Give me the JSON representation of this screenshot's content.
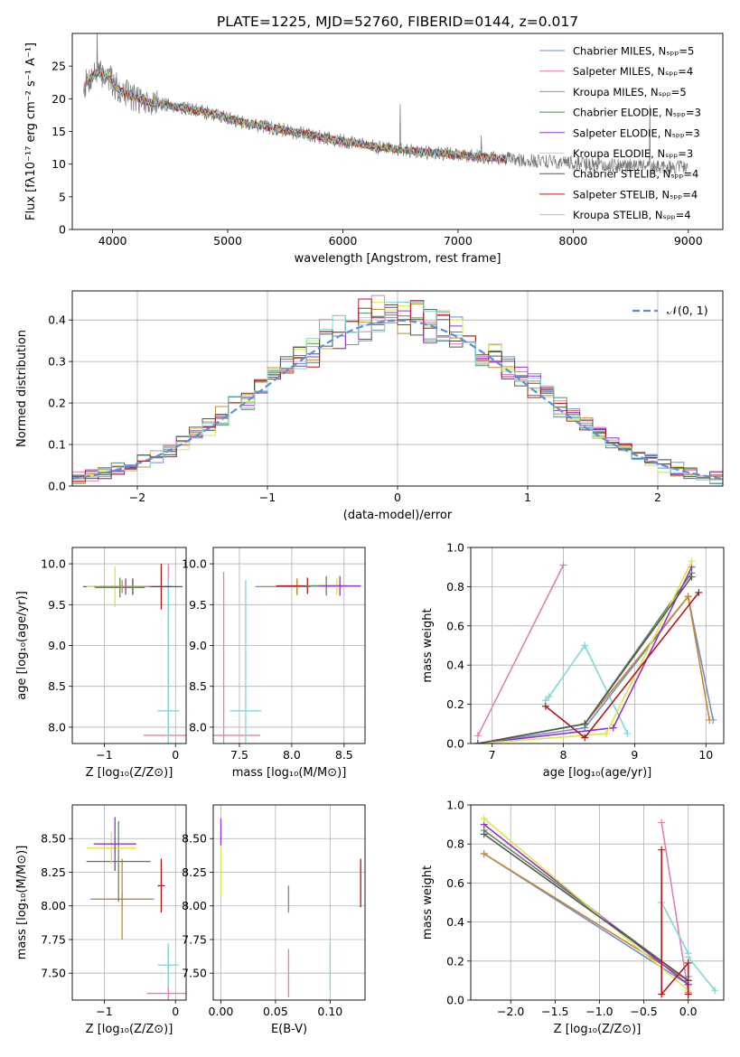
{
  "title": "PLATE=1225, MJD=52760, FIBERID=0144, z=0.017",
  "colors": {
    "Chabrier MILES": "#6b8fd6",
    "Salpeter MILES": "#e07fb5",
    "Kroupa MILES": "#c8872a",
    "Chabrier ELODIE": "#5a8a5a",
    "Salpeter ELODIE": "#9b30c6",
    "Kroupa ELODIE": "#d6e84a",
    "Chabrier STELIB": "#555555",
    "Salpeter STELIB": "#b01818",
    "Kroupa STELIB": "#7fd6d8",
    "normal": "#5b8fd8"
  },
  "chart_data": [
    {
      "type": "line",
      "xlabel": "wavelength [Angstrom, rest frame]",
      "ylabel": "Flux [fλ10⁻¹⁷ erg cm⁻² s⁻¹ A⁻¹]",
      "xlim": [
        3650,
        9300
      ],
      "ylim": [
        0,
        30
      ],
      "xticks": [
        4000,
        5000,
        6000,
        7000,
        8000,
        9000
      ],
      "yticks": [
        0,
        5,
        10,
        15,
        20,
        25
      ],
      "grid": false,
      "legend_position": "upper-right",
      "legend": [
        {
          "name": "Chabrier MILES",
          "label": "Chabrier MILES, Nₛₚₚ=5"
        },
        {
          "name": "Salpeter MILES",
          "label": "Salpeter MILES, Nₛₚₚ=4"
        },
        {
          "name": "Kroupa MILES",
          "label": "Kroupa MILES, Nₛₚₚ=5"
        },
        {
          "name": "Chabrier ELODIE",
          "label": "Chabrier ELODIE, Nₛₚₚ=3"
        },
        {
          "name": "Salpeter ELODIE",
          "label": "Salpeter ELODIE, Nₛₚₚ=3"
        },
        {
          "name": "Kroupa ELODIE",
          "label": "Kroupa ELODIE, Nₛₚₚ=3"
        },
        {
          "name": "Chabrier STELIB",
          "label": "Chabrier STELIB, Nₛₚₚ=4"
        },
        {
          "name": "Salpeter STELIB",
          "label": "Salpeter STELIB, Nₛₚₚ=4"
        },
        {
          "name": "Kroupa STELIB",
          "label": "Kroupa STELIB, Nₛₚₚ=4"
        }
      ],
      "continuum": {
        "x": [
          3750,
          3850,
          3950,
          4050,
          4150,
          4300,
          4500,
          4700,
          4900,
          5100,
          5400,
          5700,
          6000,
          6300,
          6600,
          6900,
          7200,
          7500,
          7800,
          8100,
          8400,
          8700,
          9000
        ],
        "y": [
          22,
          24,
          23.5,
          21.5,
          20.5,
          19.5,
          19,
          18.3,
          17.6,
          16.5,
          15.5,
          14.5,
          13.5,
          12.6,
          12,
          11.6,
          11.1,
          10.7,
          10.4,
          10,
          9.8,
          9.6,
          9.5
        ]
      },
      "data_range": [
        3750,
        9000
      ],
      "model_range": [
        3750,
        7420
      ]
    },
    {
      "type": "step",
      "xlabel": "(data-model)/error",
      "ylabel": "Normed distribution",
      "xlim": [
        -2.5,
        2.5
      ],
      "ylim": [
        0,
        0.47
      ],
      "xticks": [
        -2,
        -1,
        0,
        1,
        2
      ],
      "yticks": [
        0.0,
        0.1,
        0.2,
        0.3,
        0.4
      ],
      "grid": true,
      "legend_position": "upper-right",
      "legend": [
        {
          "name": "normal",
          "label": "𝒩(0, 1)"
        }
      ],
      "bin_width": 0.1
    },
    {
      "type": "errorbar",
      "xlabel": "Z [log₁₀(Z/Z⊙)]",
      "ylabel": "age  [log₁₀(age/yr)]",
      "xlim": [
        -1.45,
        0.15
      ],
      "ylim": [
        7.8,
        10.2
      ],
      "xticks": [
        -1,
        0
      ],
      "yticks": [
        8.0,
        8.5,
        9.0,
        9.5,
        10.0
      ],
      "grid": true,
      "points": [
        {
          "series": "Salpeter MILES",
          "x": -0.1,
          "y": 7.9,
          "xerr": 0.35,
          "yerr": 2.1
        },
        {
          "series": "Kroupa STELIB",
          "x": -0.1,
          "y": 8.2,
          "xerr": 0.15,
          "yerr": 1.6
        },
        {
          "series": "Chabrier STELIB",
          "x": -0.6,
          "y": 9.72,
          "xerr": 0.7,
          "yerr": 0.1
        },
        {
          "series": "Kroupa ELODIE",
          "x": -0.85,
          "y": 9.72,
          "xerr": 0.4,
          "yerr": 0.25
        },
        {
          "series": "Chabrier ELODIE",
          "x": -0.78,
          "y": 9.71,
          "xerr": 0.35,
          "yerr": 0.12
        },
        {
          "series": "Salpeter ELODIE",
          "x": -0.7,
          "y": 9.72,
          "xerr": 0.35,
          "yerr": 0.1
        },
        {
          "series": "Kroupa MILES",
          "x": -0.75,
          "y": 9.72,
          "xerr": 0.4,
          "yerr": 0.08
        },
        {
          "series": "Salpeter STELIB",
          "x": -0.2,
          "y": 9.72,
          "xerr": 0.15,
          "yerr": 0.28
        }
      ]
    },
    {
      "type": "errorbar",
      "xlabel": "mass [log₁₀(M/M⊙)]",
      "ylabel": "",
      "xlim": [
        7.25,
        8.7
      ],
      "ylim": [
        7.8,
        10.2
      ],
      "xticks": [
        7.5,
        8.0,
        8.5
      ],
      "yticks": [
        8.0,
        8.5,
        9.0,
        9.5,
        10.0
      ],
      "grid": true,
      "points": [
        {
          "series": "Salpeter MILES",
          "x": 7.35,
          "y": 7.9,
          "xerr": 0.35,
          "yerr": 2.0
        },
        {
          "series": "Kroupa STELIB",
          "x": 7.56,
          "y": 8.2,
          "xerr": 0.15,
          "yerr": 1.6
        },
        {
          "series": "Chabrier MILES",
          "x": 8.05,
          "y": 9.72,
          "xerr": 0.4,
          "yerr": 0.1
        },
        {
          "series": "Kroupa MILES",
          "x": 8.05,
          "y": 9.72,
          "xerr": 0.35,
          "yerr": 0.1
        },
        {
          "series": "Salpeter STELIB",
          "x": 8.15,
          "y": 9.73,
          "xerr": 0.3,
          "yerr": 0.1
        },
        {
          "series": "Kroupa ELODIE",
          "x": 8.43,
          "y": 9.72,
          "xerr": 0.25,
          "yerr": 0.1
        },
        {
          "series": "Chabrier ELODIE",
          "x": 8.33,
          "y": 9.73,
          "xerr": 0.2,
          "yerr": 0.12
        },
        {
          "series": "Salpeter ELODIE",
          "x": 8.46,
          "y": 9.73,
          "xerr": 0.2,
          "yerr": 0.12
        }
      ]
    },
    {
      "type": "line",
      "xlabel": "age  [log₁₀(age/yr)]",
      "ylabel": "mass weight",
      "xlim": [
        6.7,
        10.25
      ],
      "ylim": [
        0,
        1.0
      ],
      "xticks": [
        7,
        8,
        9,
        10
      ],
      "yticks": [
        0.0,
        0.2,
        0.4,
        0.6,
        0.8,
        1.0
      ],
      "grid": true,
      "series": [
        {
          "name": "Salpeter MILES",
          "x": [
            6.8,
            8.0
          ],
          "y": [
            0.04,
            0.91
          ]
        },
        {
          "name": "Kroupa STELIB",
          "x": [
            7.75,
            7.8,
            8.3,
            8.9
          ],
          "y": [
            0.22,
            0.24,
            0.5,
            0.05
          ]
        },
        {
          "name": "Chabrier MILES",
          "x": [
            6.8,
            8.3,
            9.75,
            10.1
          ],
          "y": [
            0.0,
            0.08,
            0.75,
            0.12
          ]
        },
        {
          "name": "Kroupa MILES",
          "x": [
            6.8,
            8.3,
            9.75,
            10.05
          ],
          "y": [
            0.0,
            0.1,
            0.75,
            0.12
          ]
        },
        {
          "name": "Chabrier ELODIE",
          "x": [
            6.8,
            8.3,
            9.8
          ],
          "y": [
            0.0,
            0.1,
            0.87
          ]
        },
        {
          "name": "Salpeter ELODIE",
          "x": [
            6.8,
            8.7,
            9.8
          ],
          "y": [
            0.0,
            0.08,
            0.9
          ]
        },
        {
          "name": "Kroupa ELODIE",
          "x": [
            6.8,
            8.6,
            9.8
          ],
          "y": [
            0.0,
            0.05,
            0.93
          ]
        },
        {
          "name": "Salpeter STELIB",
          "x": [
            7.75,
            8.3,
            9.9
          ],
          "y": [
            0.19,
            0.03,
            0.77
          ]
        },
        {
          "name": "Chabrier STELIB",
          "x": [
            6.8,
            8.3,
            9.8
          ],
          "y": [
            0.0,
            0.1,
            0.85
          ]
        }
      ]
    },
    {
      "type": "errorbar",
      "xlabel": "Z [log₁₀(Z/Z⊙)]",
      "ylabel": "mass [log₁₀(M/M⊙)]",
      "xlim": [
        -1.45,
        0.15
      ],
      "ylim": [
        7.3,
        8.75
      ],
      "xticks": [
        -1,
        0
      ],
      "yticks": [
        7.5,
        7.75,
        8.0,
        8.25,
        8.5
      ],
      "grid": true,
      "points": [
        {
          "series": "Salpeter MILES",
          "x": -0.1,
          "y": 7.35,
          "xerr": 0.3,
          "yerr": 0.33
        },
        {
          "series": "Kroupa STELIB",
          "x": -0.1,
          "y": 7.56,
          "xerr": 0.15,
          "yerr": 0.16
        },
        {
          "series": "Chabrier MILES",
          "x": -0.75,
          "y": 8.05,
          "xerr": 0.45,
          "yerr": 0.05
        },
        {
          "series": "Kroupa MILES",
          "x": -0.75,
          "y": 8.05,
          "xerr": 0.4,
          "yerr": 0.3
        },
        {
          "series": "Salpeter STELIB",
          "x": -0.2,
          "y": 8.15,
          "xerr": 0.05,
          "yerr": 0.2
        },
        {
          "series": "Chabrier ELODIE",
          "x": -0.8,
          "y": 8.33,
          "xerr": 0.45,
          "yerr": 0.3
        },
        {
          "series": "Kroupa ELODIE",
          "x": -0.9,
          "y": 8.43,
          "xerr": 0.35,
          "yerr": 0.12
        },
        {
          "series": "Salpeter ELODIE",
          "x": -0.85,
          "y": 8.46,
          "xerr": 0.3,
          "yerr": 0.2
        }
      ]
    },
    {
      "type": "errorbar",
      "xlabel": "E(B-V)",
      "ylabel": "",
      "xlim": [
        -0.007,
        0.132
      ],
      "ylim": [
        7.3,
        8.75
      ],
      "xticks": [
        0.0,
        0.05,
        0.1
      ],
      "yticks": [
        7.5,
        7.75,
        8.0,
        8.25,
        8.5
      ],
      "grid": true,
      "points": [
        {
          "series": "Salpeter MILES",
          "x": 0.062,
          "y": 7.5,
          "xerr": 0,
          "yerr": 0.18
        },
        {
          "series": "Kroupa STELIB",
          "x": 0.1,
          "y": 7.55,
          "xerr": 0,
          "yerr": 0.18
        },
        {
          "series": "Kroupa MILES",
          "x": 0.062,
          "y": 8.05,
          "xerr": 0,
          "yerr": 0.1
        },
        {
          "series": "Chabrier MILES",
          "x": 0.062,
          "y": 8.05,
          "xerr": 0,
          "yerr": 0.1
        },
        {
          "series": "Salpeter STELIB",
          "x": 0.128,
          "y": 8.17,
          "xerr": 0,
          "yerr": 0.18
        },
        {
          "series": "Kroupa ELODIE",
          "x": 0.0,
          "y": 8.3,
          "xerr": 0,
          "yerr": 0.22
        },
        {
          "series": "Salpeter ELODIE",
          "x": 0.0,
          "y": 8.55,
          "xerr": 0,
          "yerr": 0.1
        }
      ]
    },
    {
      "type": "line",
      "xlabel": "Z [log₁₀(Z/Z⊙)]",
      "ylabel": "mass weight",
      "xlim": [
        -2.45,
        0.4
      ],
      "ylim": [
        0,
        1.0
      ],
      "xticks": [
        -2.0,
        -1.5,
        -1.0,
        -0.5,
        0.0
      ],
      "yticks": [
        0.0,
        0.2,
        0.4,
        0.6,
        0.8,
        1.0
      ],
      "grid": true,
      "series": [
        {
          "name": "Salpeter MILES",
          "x": [
            -0.3,
            0.0
          ],
          "y": [
            0.91,
            0.04
          ]
        },
        {
          "name": "Kroupa STELIB",
          "x": [
            -0.3,
            0.0,
            0.0,
            0.3
          ],
          "y": [
            0.5,
            0.24,
            0.22,
            0.05
          ]
        },
        {
          "name": "Chabrier MILES",
          "x": [
            -2.3,
            0.0,
            0.0
          ],
          "y": [
            0.75,
            0.08,
            0.12
          ]
        },
        {
          "name": "Kroupa MILES",
          "x": [
            -2.3,
            0.0,
            0.0
          ],
          "y": [
            0.75,
            0.1,
            0.0
          ]
        },
        {
          "name": "Chabrier ELODIE",
          "x": [
            -2.3,
            0.0
          ],
          "y": [
            0.87,
            0.1
          ]
        },
        {
          "name": "Salpeter ELODIE",
          "x": [
            -2.3,
            0.0
          ],
          "y": [
            0.9,
            0.08
          ]
        },
        {
          "name": "Kroupa ELODIE",
          "x": [
            -2.3,
            0.0
          ],
          "y": [
            0.93,
            0.05
          ]
        },
        {
          "name": "Chabrier STELIB",
          "x": [
            -2.3,
            0.0
          ],
          "y": [
            0.85,
            0.1
          ]
        },
        {
          "name": "Salpeter STELIB",
          "x": [
            -0.3,
            -0.3,
            0.0,
            0.0
          ],
          "y": [
            0.77,
            0.03,
            0.19,
            0.03
          ]
        }
      ]
    }
  ]
}
